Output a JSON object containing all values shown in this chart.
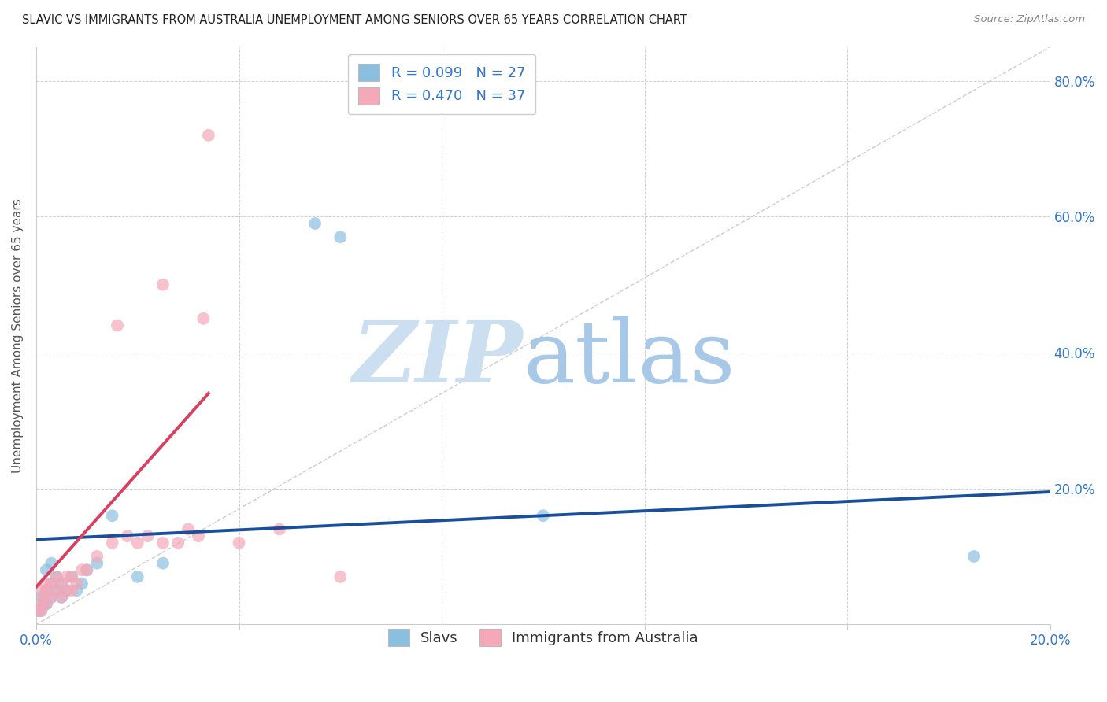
{
  "title": "SLAVIC VS IMMIGRANTS FROM AUSTRALIA UNEMPLOYMENT AMONG SENIORS OVER 65 YEARS CORRELATION CHART",
  "source": "Source: ZipAtlas.com",
  "ylabel": "Unemployment Among Seniors over 65 years",
  "xlim": [
    0.0,
    0.2
  ],
  "ylim": [
    0.0,
    0.85
  ],
  "xtick_vals": [
    0.0,
    0.04,
    0.08,
    0.12,
    0.16,
    0.2
  ],
  "ytick_vals": [
    0.0,
    0.2,
    0.4,
    0.6,
    0.8
  ],
  "blue_color": "#8bbfe0",
  "pink_color": "#f4a8b8",
  "blue_line_color": "#1a4f9e",
  "pink_line_color": "#d94060",
  "diagonal_color": "#cccccc",
  "R_blue": 0.099,
  "N_blue": 27,
  "R_pink": 0.47,
  "N_pink": 37,
  "legend_labels": [
    "Slavs",
    "Immigrants from Australia"
  ],
  "slavs_x": [
    0.0005,
    0.001,
    0.001,
    0.0015,
    0.002,
    0.002,
    0.002,
    0.003,
    0.003,
    0.003,
    0.004,
    0.004,
    0.005,
    0.005,
    0.006,
    0.007,
    0.008,
    0.009,
    0.01,
    0.012,
    0.015,
    0.02,
    0.025,
    0.055,
    0.06,
    0.1,
    0.185
  ],
  "slavs_y": [
    0.02,
    0.02,
    0.04,
    0.03,
    0.03,
    0.05,
    0.08,
    0.04,
    0.06,
    0.09,
    0.05,
    0.07,
    0.04,
    0.06,
    0.05,
    0.07,
    0.05,
    0.06,
    0.08,
    0.09,
    0.16,
    0.07,
    0.09,
    0.59,
    0.57,
    0.16,
    0.1
  ],
  "aus_x": [
    0.0005,
    0.001,
    0.001,
    0.001,
    0.0015,
    0.002,
    0.002,
    0.002,
    0.003,
    0.003,
    0.004,
    0.004,
    0.005,
    0.005,
    0.006,
    0.006,
    0.007,
    0.007,
    0.008,
    0.009,
    0.01,
    0.012,
    0.015,
    0.016,
    0.018,
    0.02,
    0.022,
    0.025,
    0.025,
    0.028,
    0.03,
    0.032,
    0.033,
    0.034,
    0.04,
    0.048,
    0.06
  ],
  "aus_y": [
    0.02,
    0.02,
    0.03,
    0.05,
    0.04,
    0.03,
    0.05,
    0.06,
    0.04,
    0.06,
    0.05,
    0.07,
    0.04,
    0.06,
    0.05,
    0.07,
    0.05,
    0.07,
    0.06,
    0.08,
    0.08,
    0.1,
    0.12,
    0.44,
    0.13,
    0.12,
    0.13,
    0.12,
    0.5,
    0.12,
    0.14,
    0.13,
    0.45,
    0.72,
    0.12,
    0.14,
    0.07
  ],
  "blue_line_x": [
    0.0,
    0.2
  ],
  "blue_line_y": [
    0.125,
    0.195
  ],
  "pink_line_x": [
    0.0,
    0.034
  ],
  "pink_line_y": [
    0.055,
    0.34
  ]
}
